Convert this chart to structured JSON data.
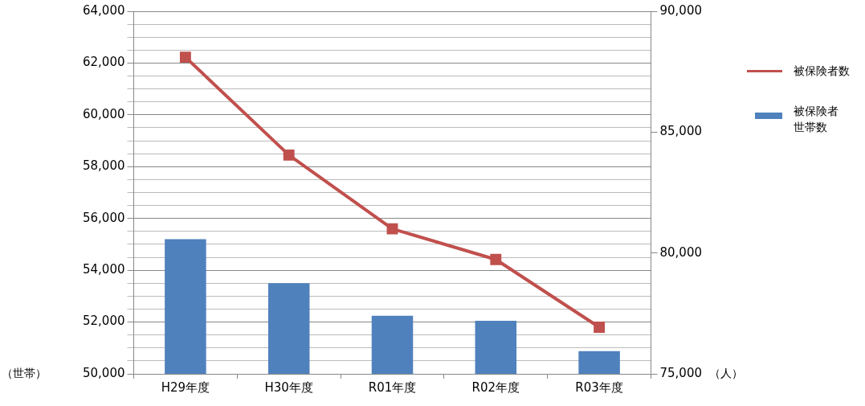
{
  "chart_data": {
    "type": "bar",
    "ylabel": "（世帯）",
    "y2label": "（人）",
    "categories": [
      "H29年度",
      "H30年度",
      "R01年度",
      "R02年度",
      "R03年度"
    ],
    "series": [
      {
        "name": "被保険者数",
        "type": "line",
        "axis": "y2",
        "color": "#c0504d",
        "values": [
          88100,
          84050,
          81000,
          79730,
          76930
        ]
      },
      {
        "name": "被保険者世帯数",
        "color": "#4f81bd",
        "values": [
          55200,
          53500,
          52240,
          52050,
          50880
        ]
      }
    ],
    "ylim": [
      50000,
      64000
    ],
    "yticks": [
      {
        "value": 50000,
        "label": "50,000"
      },
      {
        "value": 50500,
        "label": null
      },
      {
        "value": 51000,
        "label": null
      },
      {
        "value": 51500,
        "label": null
      },
      {
        "value": 52000,
        "label": "52,000"
      },
      {
        "value": 52500,
        "label": null
      },
      {
        "value": 53000,
        "label": null
      },
      {
        "value": 53500,
        "label": null
      },
      {
        "value": 54000,
        "label": "54,000"
      },
      {
        "value": 54500,
        "label": null
      },
      {
        "value": 55000,
        "label": null
      },
      {
        "value": 55500,
        "label": null
      },
      {
        "value": 56000,
        "label": "56,000"
      },
      {
        "value": 56500,
        "label": null
      },
      {
        "value": 57000,
        "label": null
      },
      {
        "value": 57500,
        "label": null
      },
      {
        "value": 58000,
        "label": "58,000"
      },
      {
        "value": 58500,
        "label": null
      },
      {
        "value": 59000,
        "label": null
      },
      {
        "value": 59500,
        "label": null
      },
      {
        "value": 60000,
        "label": "60,000"
      },
      {
        "value": 60500,
        "label": null
      },
      {
        "value": 61000,
        "label": null
      },
      {
        "value": 61500,
        "label": null
      },
      {
        "value": 62000,
        "label": "62,000"
      },
      {
        "value": 62500,
        "label": null
      },
      {
        "value": 63000,
        "label": null
      },
      {
        "value": 63500,
        "label": null
      },
      {
        "value": 64000,
        "label": "64,000"
      }
    ],
    "y2lim": [
      75000,
      90000
    ],
    "y2ticks": [
      {
        "value": 75000,
        "label": "75,000"
      },
      {
        "value": 80000,
        "label": "80,000"
      },
      {
        "value": 85000,
        "label": "85,000"
      },
      {
        "value": 90000,
        "label": "90,000"
      }
    ],
    "grid": "y",
    "legend": "right",
    "marker": "square"
  }
}
